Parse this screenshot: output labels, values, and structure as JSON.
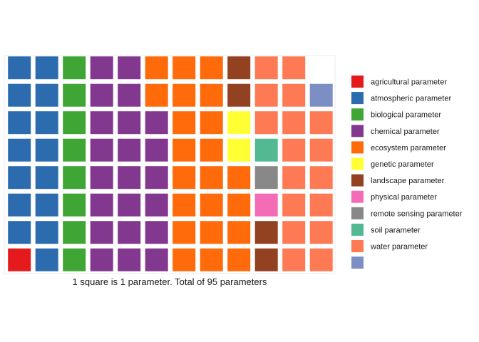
{
  "chart_data": {
    "type": "waffle",
    "caption": "1 square is 1 parameter. Total of 95 parameters",
    "columns": 12,
    "rows": 8,
    "categories": [
      {
        "name": "agricultural parameter",
        "value": 1,
        "color": "#E41A1C"
      },
      {
        "name": "atmospheric parameter",
        "value": 15,
        "color": "#2B6BAE"
      },
      {
        "name": "biological parameter",
        "value": 8,
        "color": "#3FA535"
      },
      {
        "name": "chemical parameter",
        "value": 22,
        "color": "#83388F"
      },
      {
        "name": "ecosystem parameter",
        "value": 22,
        "color": "#FF6A0A"
      },
      {
        "name": "genetic parameter",
        "value": 2,
        "color": "#FFFF33"
      },
      {
        "name": "landscape parameter",
        "value": 4,
        "color": "#924220"
      },
      {
        "name": "physical parameter",
        "value": 1,
        "color": "#F46CB5"
      },
      {
        "name": "remote sensing parameter",
        "value": 1,
        "color": "#888888"
      },
      {
        "name": "soil parameter",
        "value": 1,
        "color": "#52B992"
      },
      {
        "name": "water parameter",
        "value": 17,
        "color": "#FD7A55"
      },
      {
        "name": "",
        "value": 1,
        "color": "#7B8FC4"
      }
    ],
    "legend_position": "right"
  }
}
